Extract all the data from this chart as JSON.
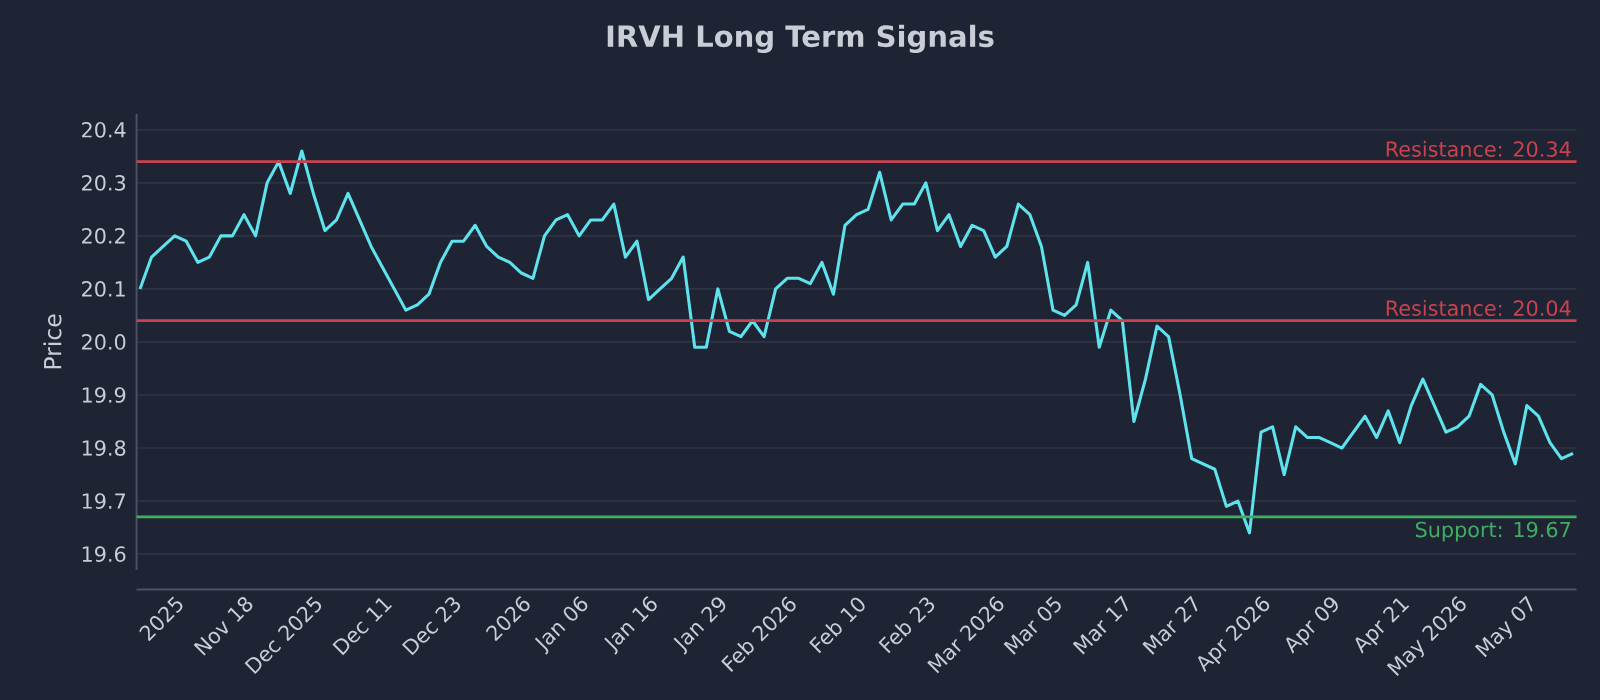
{
  "chart_data": {
    "type": "line",
    "title": "IRVH Long Term Signals",
    "ylabel": "Price",
    "categories": [
      null,
      null,
      null,
      "2025",
      null,
      null,
      null,
      null,
      null,
      "Nov 18",
      null,
      null,
      null,
      null,
      null,
      "Dec 2025",
      null,
      null,
      null,
      null,
      null,
      "Dec 11",
      null,
      null,
      null,
      null,
      null,
      "Dec 23",
      null,
      null,
      null,
      null,
      null,
      "2026",
      null,
      null,
      null,
      null,
      "Jan 06",
      null,
      null,
      null,
      null,
      null,
      "Jan 16",
      null,
      null,
      null,
      null,
      null,
      "Jan 29",
      null,
      null,
      null,
      null,
      null,
      "Feb 2026",
      null,
      null,
      null,
      null,
      null,
      "Feb 10",
      null,
      null,
      null,
      null,
      null,
      "Feb 23",
      null,
      null,
      null,
      null,
      null,
      "Mar 2026",
      null,
      null,
      null,
      null,
      "Mar 05",
      null,
      null,
      null,
      null,
      null,
      "Mar 17",
      null,
      null,
      null,
      null,
      null,
      "Mar 27",
      null,
      null,
      null,
      null,
      null,
      "Apr 2026",
      null,
      null,
      null,
      null,
      null,
      "Apr 09",
      null,
      null,
      null,
      null,
      null,
      "Apr 21",
      null,
      null,
      null,
      null,
      "May 2026",
      null,
      null,
      null,
      null,
      null,
      "May 07",
      null,
      null,
      null,
      null
    ],
    "series": [
      {
        "color": "#5ee3ee",
        "values": [
          20.1,
          20.16,
          20.18,
          20.2,
          20.19,
          20.15,
          20.16,
          20.2,
          20.2,
          20.24,
          20.2,
          20.3,
          20.34,
          20.28,
          20.36,
          20.28,
          20.21,
          20.23,
          20.28,
          20.23,
          20.18,
          20.14,
          20.1,
          20.06,
          20.07,
          20.09,
          20.15,
          20.19,
          20.19,
          20.22,
          20.18,
          20.16,
          20.15,
          20.13,
          20.12,
          20.2,
          20.23,
          20.24,
          20.2,
          20.23,
          20.23,
          20.26,
          20.16,
          20.19,
          20.08,
          20.1,
          20.12,
          20.16,
          19.99,
          19.99,
          20.1,
          20.02,
          20.01,
          20.04,
          20.01,
          20.1,
          20.12,
          20.12,
          20.11,
          20.15,
          20.09,
          20.22,
          20.24,
          20.25,
          20.32,
          20.23,
          20.26,
          20.26,
          20.3,
          20.21,
          20.24,
          20.18,
          20.22,
          20.21,
          20.16,
          20.18,
          20.26,
          20.24,
          20.18,
          20.06,
          20.05,
          20.07,
          20.15,
          19.99,
          20.06,
          20.04,
          19.85,
          19.93,
          20.03,
          20.01,
          19.9,
          19.78,
          19.77,
          19.76,
          19.69,
          19.7,
          19.64,
          19.83,
          19.84,
          19.75,
          19.84,
          19.82,
          19.82,
          19.81,
          19.8,
          19.83,
          19.86,
          19.82,
          19.87,
          19.81,
          19.88,
          19.93,
          19.88,
          19.83,
          19.84,
          19.86,
          19.92,
          19.9,
          19.83,
          19.77,
          19.88,
          19.86,
          19.81,
          19.78,
          19.79
        ]
      }
    ],
    "ylim": [
      19.57,
      20.43
    ],
    "yticks": [
      19.6,
      19.7,
      19.8,
      19.9,
      {
        "value": 20,
        "label": "20.0"
      },
      20.1,
      20.2,
      20.3,
      20.4
    ],
    "grid": "y",
    "line_style": "solid",
    "ref_lines": [
      {
        "axis": "y",
        "value": 20.34,
        "label": "Resistance: 20.34",
        "color": "#c9424e"
      },
      {
        "axis": "y",
        "value": 20.04,
        "label": "Resistance: 20.04",
        "color": "#c9424e"
      },
      {
        "axis": "y",
        "value": 19.67,
        "label": "Support: 19.67",
        "color": "#3fae63"
      }
    ]
  }
}
